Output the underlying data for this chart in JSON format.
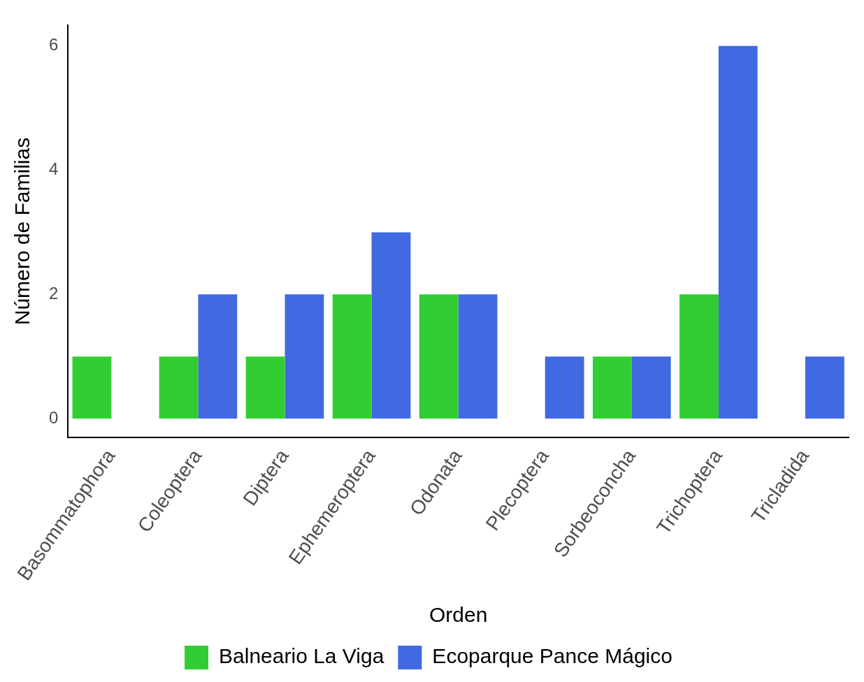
{
  "chart_data": {
    "type": "bar",
    "xlabel": "Orden",
    "ylabel": "Número de Familias",
    "categories": [
      "Basommatophora",
      "Coleoptera",
      "Diptera",
      "Ephemeroptera",
      "Odonata",
      "Plecoptera",
      "Sorbeoconcha",
      "Trichoptera",
      "Tricladida"
    ],
    "series": [
      {
        "name": "Balneario La Viga",
        "color": "#32cd32",
        "values": [
          1,
          1,
          1,
          2,
          2,
          null,
          1,
          2,
          null
        ]
      },
      {
        "name": "Ecoparque Pance Mágico",
        "color": "#4169e1",
        "values": [
          null,
          2,
          2,
          3,
          2,
          1,
          1,
          6,
          1
        ]
      }
    ],
    "ylim": [
      -0.3,
      6.33
    ],
    "yticks": [
      0,
      2,
      4,
      6
    ],
    "grid": false,
    "legend": "bottom"
  }
}
